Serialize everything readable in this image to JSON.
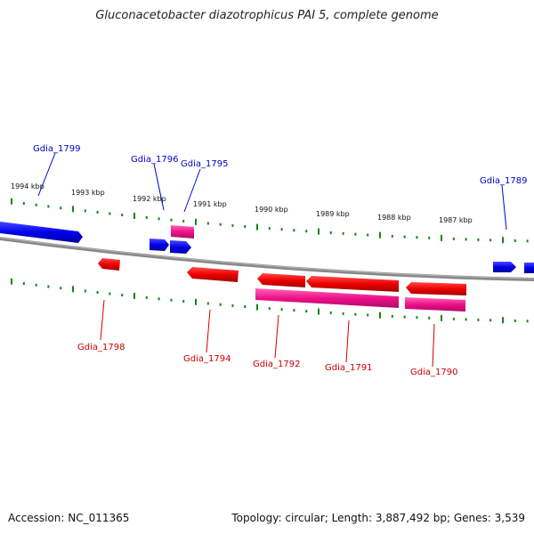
{
  "title": "Gluconacetobacter diazotrophicus PAI 5, complete genome",
  "footer": {
    "accession": "Accession: NC_011365",
    "summary": "Topology: circular; Length: 3,887,492 bp; Genes: 3,539"
  },
  "colors": {
    "forward_gene": "#0000ee",
    "reverse_gene": "#ee0000",
    "rna_gene": "#ee1188",
    "backbone": "#888888",
    "ticks": "#118811",
    "forward_label": "#0000cc",
    "reverse_label": "#cc0000"
  },
  "scale_labels": [
    "1994 kbp",
    "1993 kbp",
    "1992 kbp",
    "1991 kbp",
    "1990 kbp",
    "1989 kbp",
    "1988 kbp",
    "1987 kbp"
  ],
  "forward_gene_labels": [
    "Gdia_1799",
    "Gdia_1796",
    "Gdia_1795",
    "Gdia_1789"
  ],
  "reverse_gene_labels": [
    "Gdia_1798",
    "Gdia_1794",
    "Gdia_1792",
    "Gdia_1791",
    "Gdia_1790"
  ]
}
